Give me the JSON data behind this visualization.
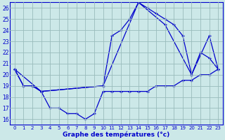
{
  "title": "Graphe des températures (°c)",
  "bg_color": "#cce8e8",
  "line_color": "#0000cc",
  "grid_color": "#99bbbb",
  "xlim": [
    -0.5,
    23.5
  ],
  "ylim": [
    15.5,
    26.5
  ],
  "yticks": [
    16,
    17,
    18,
    19,
    20,
    21,
    22,
    23,
    24,
    25,
    26
  ],
  "xticks": [
    0,
    1,
    2,
    3,
    4,
    5,
    6,
    7,
    8,
    9,
    10,
    11,
    12,
    13,
    14,
    15,
    16,
    17,
    18,
    19,
    20,
    21,
    22,
    23
  ],
  "series1_x": [
    0,
    1,
    2,
    3,
    4,
    5,
    6,
    7,
    8,
    9,
    10,
    11,
    12,
    13,
    14,
    15,
    16,
    17,
    18,
    19,
    20,
    21,
    22,
    23
  ],
  "series1_y": [
    20.5,
    19,
    19,
    18.5,
    17,
    17,
    16.5,
    16.5,
    16,
    16.5,
    18.5,
    18.5,
    18.5,
    18.5,
    18.5,
    18.5,
    19,
    19,
    19,
    19.5,
    19.5,
    20,
    20,
    20.5
  ],
  "series2_x": [
    0,
    1,
    2,
    3,
    10,
    11,
    12,
    13,
    14,
    15,
    16,
    17,
    18,
    19,
    20,
    21,
    22,
    23
  ],
  "series2_y": [
    20.5,
    19,
    19,
    18.5,
    19,
    23.5,
    24,
    25,
    26.5,
    26,
    25.5,
    25,
    24.5,
    23.5,
    20,
    22,
    21.5,
    20.5
  ],
  "series3_x": [
    0,
    3,
    10,
    14,
    17,
    20,
    22,
    23
  ],
  "series3_y": [
    20.5,
    18.5,
    19,
    26.5,
    24.5,
    20,
    23.5,
    20.5
  ]
}
